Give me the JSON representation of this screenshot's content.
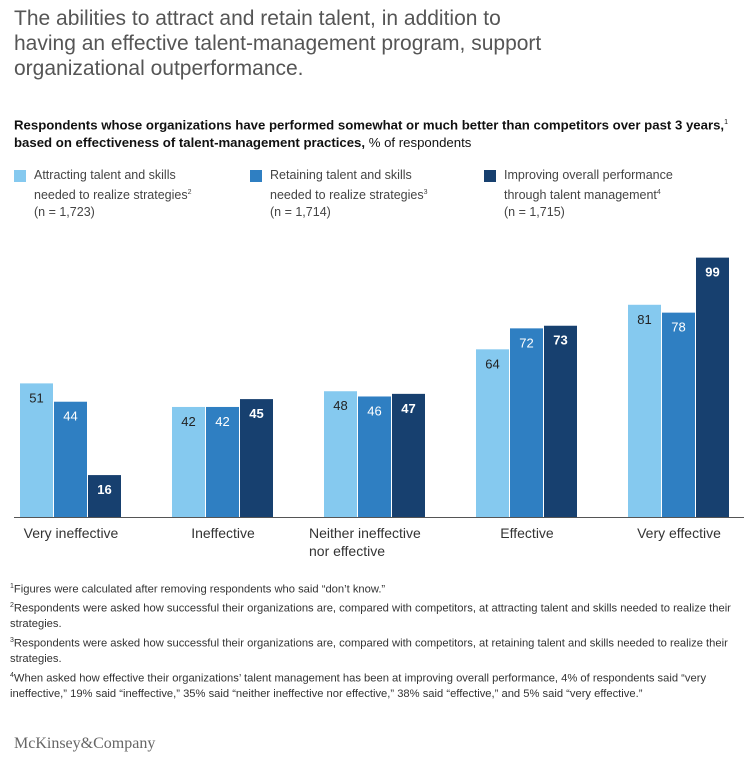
{
  "header": {
    "title": "The abilities to attract and retain talent, in addition to\nhaving an effective talent-management program, support\norganizational outperformance.",
    "subtitle_bold_1": "Respondents whose organizations have performed somewhat or much better than competitors over past 3 years,",
    "subtitle_sup": "1",
    "subtitle_bold_2": " based on effectiveness of talent-management practices,",
    "subtitle_normal": " % of respondents"
  },
  "legend": [
    {
      "label": "Attracting talent and skills\nneeded to realize strategies",
      "sup": "2",
      "n": "(n = 1,723)",
      "color": "#85c9ef"
    },
    {
      "label": "Retaining talent and skills\nneeded to realize strategies",
      "sup": "3",
      "n": "(n = 1,714)",
      "color": "#2f7fc2"
    },
    {
      "label": "Improving overall performance\nthrough talent management",
      "sup": "4",
      "n": "(n = 1,715)",
      "color": "#17406f"
    }
  ],
  "chart_data": {
    "type": "bar",
    "categories": [
      "Very ineffective",
      "Ineffective",
      "Neither ineffective\nnor effective",
      "Effective",
      "Very effective"
    ],
    "series": [
      {
        "name": "Attracting talent and skills needed to realize strategies",
        "values": [
          51,
          42,
          48,
          64,
          81
        ],
        "color": "#85c9ef"
      },
      {
        "name": "Retaining talent and skills needed to realize strategies",
        "values": [
          44,
          42,
          46,
          72,
          78
        ],
        "color": "#2f7fc2"
      },
      {
        "name": "Improving overall performance through talent management",
        "values": [
          16,
          45,
          47,
          73,
          99
        ],
        "color": "#17406f"
      }
    ],
    "ylim": [
      0,
      100
    ],
    "grid": false,
    "legend_position": "top"
  },
  "footnotes": [
    {
      "sup": "1",
      "text": "Figures were calculated after removing respondents who said “don’t know.”"
    },
    {
      "sup": "2",
      "text": "Respondents were asked how successful their organizations are, compared with competitors, at attracting talent and skills needed to realize their strategies."
    },
    {
      "sup": "3",
      "text": "Respondents were asked how successful their organizations are, compared with competitors, at retaining talent and skills needed to realize their strategies."
    },
    {
      "sup": "4",
      "text": "When asked how effective their organizations’ talent management has been at improving overall performance, 4% of respondents said “very ineffective,” 19% said “ineffective,” 35% said “neither ineffective nor effective,” 38% said “effective,” and 5% said “very effective.”"
    }
  ],
  "brand": "McKinsey&Company"
}
